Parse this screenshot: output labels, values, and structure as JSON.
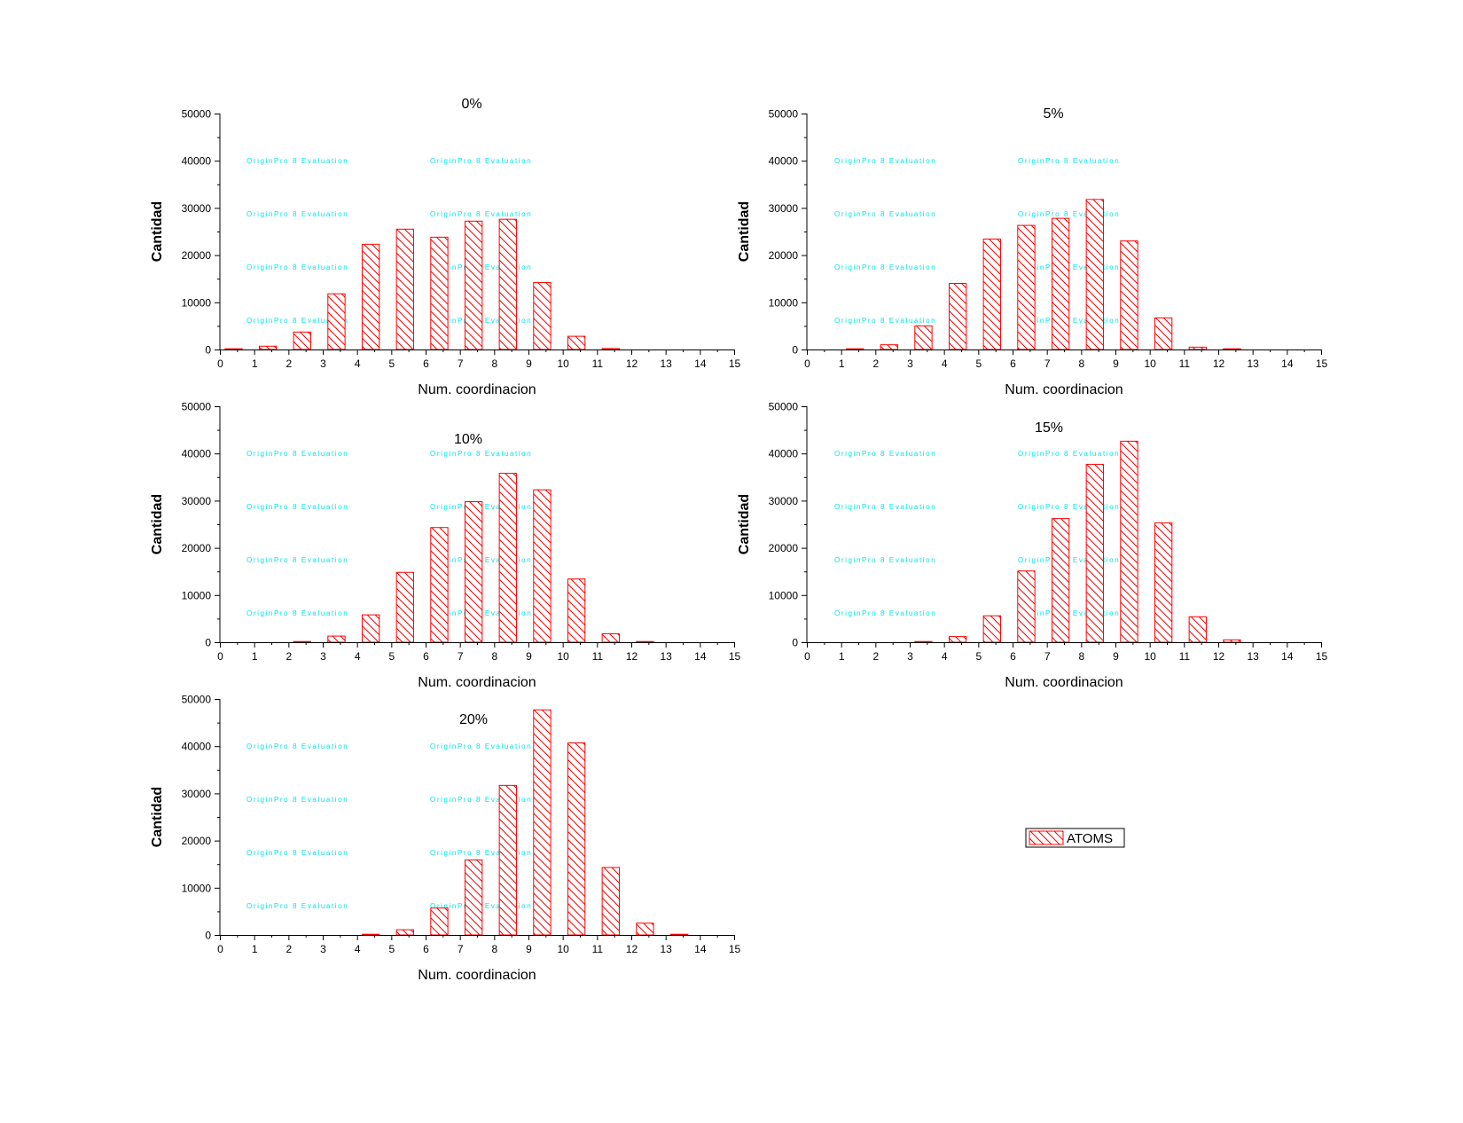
{
  "watermark": "OriginPro 8 Evaluation",
  "legend": {
    "label": "ATOMS"
  },
  "colors": {
    "bar_stroke": "#ff0000",
    "watermark": "#00e5ee",
    "axis": "#000000"
  },
  "chart_data": [
    {
      "type": "bar",
      "title": "0%",
      "xlabel": "Num. coordinacion",
      "ylabel": "Cantidad",
      "xlim": [
        0,
        15
      ],
      "ylim": [
        0,
        50000
      ],
      "x_ticks": [
        0,
        1,
        2,
        3,
        4,
        5,
        6,
        7,
        8,
        9,
        10,
        11,
        12,
        13,
        14,
        15
      ],
      "y_ticks": [
        0,
        10000,
        20000,
        30000,
        40000,
        50000
      ],
      "series": [
        {
          "name": "ATOMS",
          "x": [
            0,
            1,
            2,
            3,
            4,
            5,
            6,
            7,
            8,
            9,
            10,
            11,
            12,
            13,
            14
          ],
          "values": [
            150,
            700,
            3700,
            11800,
            22300,
            25500,
            23800,
            27200,
            27600,
            14200,
            2800,
            200,
            0,
            0,
            0
          ]
        }
      ]
    },
    {
      "type": "bar",
      "title": "5%",
      "xlabel": "Num. coordinacion",
      "ylabel": "Cantidad",
      "xlim": [
        0,
        15
      ],
      "ylim": [
        0,
        50000
      ],
      "x_ticks": [
        0,
        1,
        2,
        3,
        4,
        5,
        6,
        7,
        8,
        9,
        10,
        11,
        12,
        13,
        14,
        15
      ],
      "y_ticks": [
        0,
        10000,
        20000,
        30000,
        40000,
        50000
      ],
      "series": [
        {
          "name": "ATOMS",
          "x": [
            0,
            1,
            2,
            3,
            4,
            5,
            6,
            7,
            8,
            9,
            10,
            11,
            12,
            13,
            14
          ],
          "values": [
            0,
            150,
            1000,
            5000,
            14000,
            23400,
            26300,
            27800,
            31800,
            23000,
            6700,
            500,
            150,
            0,
            0
          ]
        }
      ]
    },
    {
      "type": "bar",
      "title": "10%",
      "xlabel": "Num. coordinacion",
      "ylabel": "Cantidad",
      "xlim": [
        0,
        15
      ],
      "ylim": [
        0,
        50000
      ],
      "x_ticks": [
        0,
        1,
        2,
        3,
        4,
        5,
        6,
        7,
        8,
        9,
        10,
        11,
        12,
        13,
        14,
        15
      ],
      "y_ticks": [
        0,
        10000,
        20000,
        30000,
        40000,
        50000
      ],
      "series": [
        {
          "name": "ATOMS",
          "x": [
            0,
            1,
            2,
            3,
            4,
            5,
            6,
            7,
            8,
            9,
            10,
            11,
            12,
            13,
            14
          ],
          "values": [
            0,
            0,
            150,
            1300,
            5800,
            14800,
            24300,
            29800,
            35800,
            32300,
            13400,
            1800,
            150,
            0,
            0
          ]
        }
      ]
    },
    {
      "type": "bar",
      "title": "15%",
      "xlabel": "Num. coordinacion",
      "ylabel": "Cantidad",
      "xlim": [
        0,
        15
      ],
      "ylim": [
        0,
        50000
      ],
      "x_ticks": [
        0,
        1,
        2,
        3,
        4,
        5,
        6,
        7,
        8,
        9,
        10,
        11,
        12,
        13,
        14,
        15
      ],
      "y_ticks": [
        0,
        10000,
        20000,
        30000,
        40000,
        50000
      ],
      "series": [
        {
          "name": "ATOMS",
          "x": [
            0,
            1,
            2,
            3,
            4,
            5,
            6,
            7,
            8,
            9,
            10,
            11,
            12,
            13,
            14
          ],
          "values": [
            0,
            0,
            0,
            150,
            1200,
            5600,
            15100,
            26200,
            37700,
            42600,
            25300,
            5400,
            500,
            0,
            0
          ]
        }
      ]
    },
    {
      "type": "bar",
      "title": "20%",
      "xlabel": "Num. coordinacion",
      "ylabel": "Cantidad",
      "xlim": [
        0,
        15
      ],
      "ylim": [
        0,
        50000
      ],
      "x_ticks": [
        0,
        1,
        2,
        3,
        4,
        5,
        6,
        7,
        8,
        9,
        10,
        11,
        12,
        13,
        14,
        15
      ],
      "y_ticks": [
        0,
        10000,
        20000,
        30000,
        40000,
        50000
      ],
      "series": [
        {
          "name": "ATOMS",
          "x": [
            0,
            1,
            2,
            3,
            4,
            5,
            6,
            7,
            8,
            9,
            10,
            11,
            12,
            13,
            14
          ],
          "values": [
            0,
            0,
            0,
            0,
            150,
            1100,
            5700,
            15900,
            31700,
            47700,
            40700,
            14300,
            2500,
            150,
            0
          ]
        }
      ]
    }
  ]
}
